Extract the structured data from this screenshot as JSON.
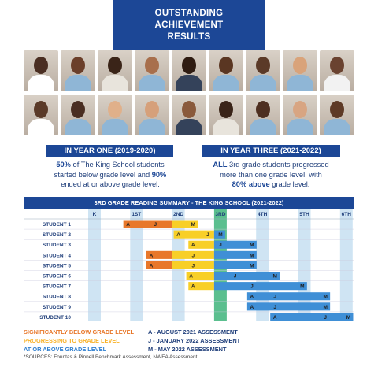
{
  "banner": {
    "line1": "OUTSTANDING",
    "line2": "ACHIEVEMENT",
    "line3": "RESULTS"
  },
  "year_one": {
    "heading": "IN YEAR ONE (2019-2020)",
    "pct1": "50%",
    "text1": " of The King School students",
    "text2": "started below grade level and ",
    "pct2": "90%",
    "text3": "ended at or above grade level."
  },
  "year_three": {
    "heading": "IN YEAR THREE (2021-2022)",
    "all": "ALL",
    "text1": " 3rd grade students progressed",
    "text2": "more than one grade level, with",
    "pct": "80% above",
    "text3": " grade level."
  },
  "summary_title": "3RD GRADE READING SUMMARY - THE KING SCHOOL (2021-2022)",
  "chart_data": {
    "type": "table",
    "grade_columns": [
      "K",
      "1ST",
      "2ND",
      "3RD",
      "4TH",
      "5TH",
      "6TH"
    ],
    "students": [
      {
        "name": "STUDENT 1",
        "A": 0.8,
        "J": 1.45,
        "M": 2.35,
        "status_start": "below"
      },
      {
        "name": "STUDENT 2",
        "A": 2.0,
        "J": 2.7,
        "M": 3.0,
        "status_start": "progressing"
      },
      {
        "name": "STUDENT 3",
        "A": 2.35,
        "J": 3.0,
        "M": 3.75,
        "status_start": "progressing"
      },
      {
        "name": "STUDENT 4",
        "A": 1.35,
        "J": 2.35,
        "M": 3.75,
        "status_start": "below"
      },
      {
        "name": "STUDENT 5",
        "A": 1.35,
        "J": 2.35,
        "M": 3.75,
        "status_start": "below"
      },
      {
        "name": "STUDENT 6",
        "A": 2.3,
        "J": 3.35,
        "M": 4.3,
        "status_start": "progressing"
      },
      {
        "name": "STUDENT 7",
        "A": 2.35,
        "J": 3.75,
        "M": 4.95,
        "status_start": "progressing"
      },
      {
        "name": "STUDENT 8",
        "A": 3.75,
        "J": 4.3,
        "M": 5.5,
        "status_start": "at_or_above"
      },
      {
        "name": "STUDENT 9",
        "A": 3.75,
        "J": 4.3,
        "M": 5.5,
        "status_start": "at_or_above"
      },
      {
        "name": "STUDENT 10",
        "A": 4.3,
        "J": 5.5,
        "M": 6.05,
        "status_start": "at_or_above"
      }
    ],
    "colors": {
      "below": "#e8772a",
      "progressing": "#f8cf27",
      "at_or_above": "#3f8fd6",
      "third_col": "#5bbf8f",
      "col_bg": "#cfe4f3",
      "line": "#1f3e7a"
    }
  },
  "legend": {
    "below": "SIGNIFICANTLY BELOW GRADE LEVEL",
    "progressing": "PROGRESSING TO GRADE LEVEL",
    "above": "AT OR ABOVE GRADE LEVEL",
    "a": "A - AUGUST 2021 ASSESSMENT",
    "j": "J - JANUARY 2022 ASSESSMENT",
    "m": "M - MAY 2022 ASSESSMENT",
    "below_color": "#e8772a",
    "progressing_color": "#f8b127",
    "above_color": "#2f7fd0"
  },
  "sources": "*SOURCES: Fountas & Pinnell Benchmark Assessment, NWEA Assessment",
  "photo_tones": {
    "skins": [
      "#4a2e22",
      "#6b3f2a",
      "#3a2418",
      "#a86f4c",
      "#2f1c12",
      "#5a3622",
      "#5b3a28",
      "#d9a37a",
      "#6a4230",
      "#5a3a28",
      "#4a2e22",
      "#e0b08a",
      "#d6a07a",
      "#8a5a3c",
      "#3a2418",
      "#4e2f20",
      "#d8a582",
      "#5e3a26"
    ],
    "shirts": [
      "#ffffff",
      "#8fb6d6",
      "#e8e4dc",
      "#8fb6d6",
      "#34425a",
      "#8fb6d6",
      "#8fb6d6",
      "#8fb6d6",
      "#f2f2f2",
      "#ffffff",
      "#8fb6d6",
      "#8fb6d6",
      "#8fb6d6",
      "#34425a",
      "#e8e4dc",
      "#8fb6d6",
      "#8fb6d6",
      "#8fb6d6"
    ]
  }
}
